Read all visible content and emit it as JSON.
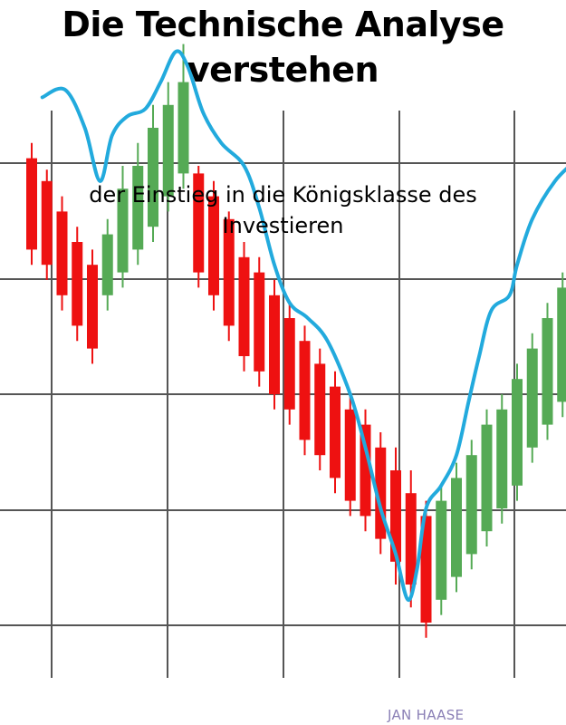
{
  "cover": {
    "title_line1": "Die Technische Analyse",
    "title_line2": "verstehen",
    "subtitle_line1": "der Einstieg in die Königsklasse des",
    "subtitle_line2": "Investieren",
    "author": "JAN HAASE"
  },
  "colors": {
    "background": "#ffffff",
    "grid": "#555555",
    "bearish_candle": "#ee1111",
    "bullish_candle": "#55aa55",
    "moving_average": "#22aadd",
    "author": "#8a7fb5"
  },
  "chart_data": {
    "type": "candlestick",
    "grid": true,
    "candles": [
      {
        "direction": "down",
        "open": 31,
        "close": 19,
        "high": 33,
        "low": 17
      },
      {
        "direction": "down",
        "open": 28,
        "close": 17,
        "high": 29.5,
        "low": 15
      },
      {
        "direction": "down",
        "open": 24,
        "close": 13,
        "high": 26,
        "low": 11
      },
      {
        "direction": "down",
        "open": 20,
        "close": 9,
        "high": 22,
        "low": 7
      },
      {
        "direction": "down",
        "open": 17,
        "close": 6,
        "high": 19,
        "low": 4
      },
      {
        "direction": "up",
        "open": 13,
        "close": 21,
        "high": 23,
        "low": 11
      },
      {
        "direction": "up",
        "open": 16,
        "close": 27,
        "high": 30,
        "low": 14
      },
      {
        "direction": "up",
        "open": 19,
        "close": 30,
        "high": 33,
        "low": 17
      },
      {
        "direction": "up",
        "open": 22,
        "close": 35,
        "high": 38,
        "low": 20
      },
      {
        "direction": "up",
        "open": 26,
        "close": 38,
        "high": 41,
        "low": 24
      },
      {
        "direction": "up",
        "open": 29,
        "close": 41,
        "high": 46,
        "low": 27
      },
      {
        "direction": "down",
        "open": 29,
        "close": 16,
        "high": 30,
        "low": 14
      },
      {
        "direction": "down",
        "open": 26,
        "close": 13,
        "high": 28,
        "low": 11
      },
      {
        "direction": "down",
        "open": 23,
        "close": 9,
        "high": 24,
        "low": 7
      },
      {
        "direction": "down",
        "open": 18,
        "close": 5,
        "high": 20,
        "low": 3
      },
      {
        "direction": "down",
        "open": 16,
        "close": 3,
        "high": 18,
        "low": 1
      },
      {
        "direction": "down",
        "open": 13,
        "close": 0,
        "high": 15,
        "low": -2
      },
      {
        "direction": "down",
        "open": 10,
        "close": -2,
        "high": 12,
        "low": -4
      },
      {
        "direction": "down",
        "open": 7,
        "close": -6,
        "high": 9,
        "low": -8
      },
      {
        "direction": "down",
        "open": 4,
        "close": -8,
        "high": 6,
        "low": -10
      },
      {
        "direction": "down",
        "open": 1,
        "close": -11,
        "high": 3,
        "low": -13
      },
      {
        "direction": "down",
        "open": -2,
        "close": -14,
        "high": 0,
        "low": -16
      },
      {
        "direction": "down",
        "open": -4,
        "close": -16,
        "high": -2,
        "low": -18
      },
      {
        "direction": "down",
        "open": -7,
        "close": -19,
        "high": -5,
        "low": -21
      },
      {
        "direction": "down",
        "open": -10,
        "close": -22,
        "high": -7,
        "low": -25
      },
      {
        "direction": "down",
        "open": -13,
        "close": -25,
        "high": -10,
        "low": -28
      },
      {
        "direction": "down",
        "open": -16,
        "close": -30,
        "high": -14,
        "low": -32
      },
      {
        "direction": "up",
        "open": -27,
        "close": -14,
        "high": -12,
        "low": -29
      },
      {
        "direction": "up",
        "open": -24,
        "close": -11,
        "high": -9,
        "low": -26
      },
      {
        "direction": "up",
        "open": -21,
        "close": -8,
        "high": -6,
        "low": -23
      },
      {
        "direction": "up",
        "open": -18,
        "close": -4,
        "high": -2,
        "low": -20
      },
      {
        "direction": "up",
        "open": -15,
        "close": -2,
        "high": 0,
        "low": -17
      },
      {
        "direction": "up",
        "open": -12,
        "close": 2,
        "high": 4,
        "low": -14
      },
      {
        "direction": "up",
        "open": -7,
        "close": 6,
        "high": 8,
        "low": -9
      },
      {
        "direction": "up",
        "open": -4,
        "close": 10,
        "high": 12,
        "low": -6
      },
      {
        "direction": "up",
        "open": -1,
        "close": 14,
        "high": 16,
        "low": -3
      },
      {
        "direction": "up",
        "open": 4,
        "close": 17,
        "high": 19,
        "low": 2
      },
      {
        "direction": "up",
        "open": 7,
        "close": 21,
        "high": 23,
        "low": 5
      }
    ],
    "moving_average": [
      [
        0.7,
        39
      ],
      [
        2.2,
        40
      ],
      [
        3.5,
        35
      ],
      [
        4.5,
        28
      ],
      [
        5.3,
        34
      ],
      [
        6.3,
        36.5
      ],
      [
        7.5,
        37.5
      ],
      [
        8.5,
        41
      ],
      [
        9.5,
        45
      ],
      [
        10.3,
        43
      ],
      [
        11.3,
        37
      ],
      [
        12.5,
        33
      ],
      [
        14,
        30
      ],
      [
        15,
        24.5
      ],
      [
        16,
        17
      ],
      [
        17,
        12
      ],
      [
        18.2,
        10
      ],
      [
        19.5,
        7
      ],
      [
        21,
        0
      ],
      [
        22,
        -7
      ],
      [
        23,
        -15
      ],
      [
        24,
        -21
      ],
      [
        24.8,
        -27
      ],
      [
        25.4,
        -23
      ],
      [
        26,
        -15
      ],
      [
        27,
        -12
      ],
      [
        28,
        -8
      ],
      [
        28.8,
        -1
      ],
      [
        29.5,
        5
      ],
      [
        30.3,
        11
      ],
      [
        31.5,
        13
      ],
      [
        32,
        17
      ],
      [
        33,
        23
      ],
      [
        34.5,
        28
      ],
      [
        36,
        31
      ],
      [
        37.3,
        34
      ]
    ]
  }
}
